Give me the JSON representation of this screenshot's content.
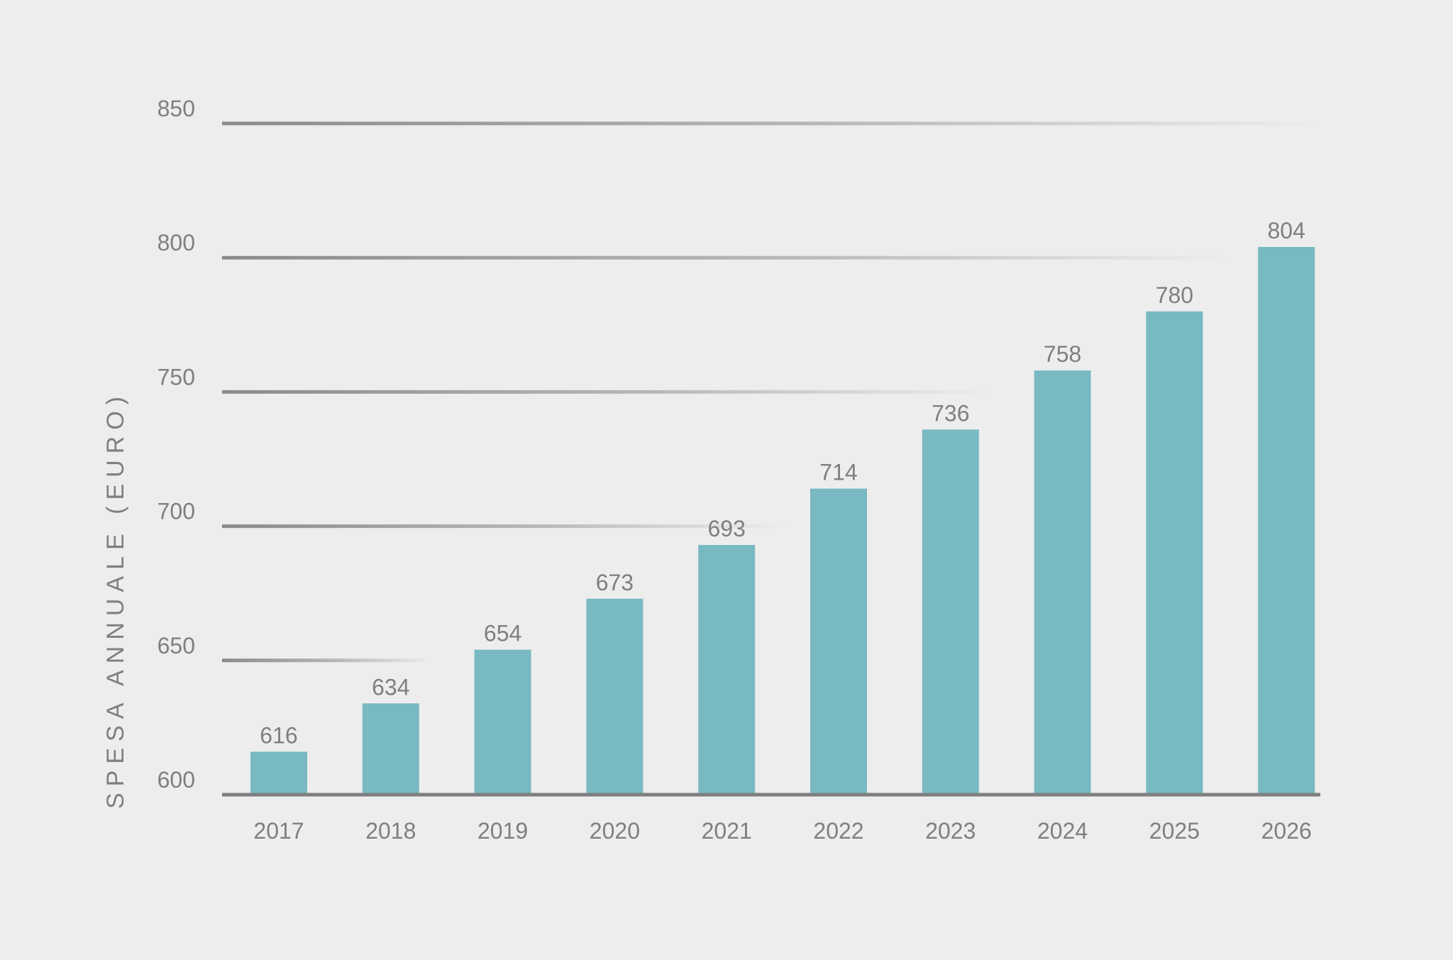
{
  "chart_data": {
    "type": "bar",
    "title": "",
    "xlabel": "",
    "ylabel": "SPESA ANNUALE (EURO)",
    "ylim": [
      600,
      850
    ],
    "yticks": [
      600,
      650,
      700,
      750,
      800,
      850
    ],
    "ytick_labels": [
      "600",
      "650",
      "700",
      "750",
      "800",
      "850"
    ],
    "grid": true,
    "legend": "none",
    "categories": [
      "2017",
      "2018",
      "2019",
      "2020",
      "2021",
      "2022",
      "2023",
      "2024",
      "2025",
      "2026"
    ],
    "values": [
      616,
      634,
      654,
      673,
      693,
      714,
      736,
      758,
      780,
      804
    ],
    "data_labels": [
      "616",
      "634",
      "654",
      "673",
      "693",
      "714",
      "736",
      "758",
      "780",
      "804"
    ],
    "colors": {
      "bar": "#78b9c2",
      "text": "#7f7f7f",
      "axis": "#7f7f7f",
      "grid": "#8a8a8a",
      "background": "#ededed"
    }
  }
}
